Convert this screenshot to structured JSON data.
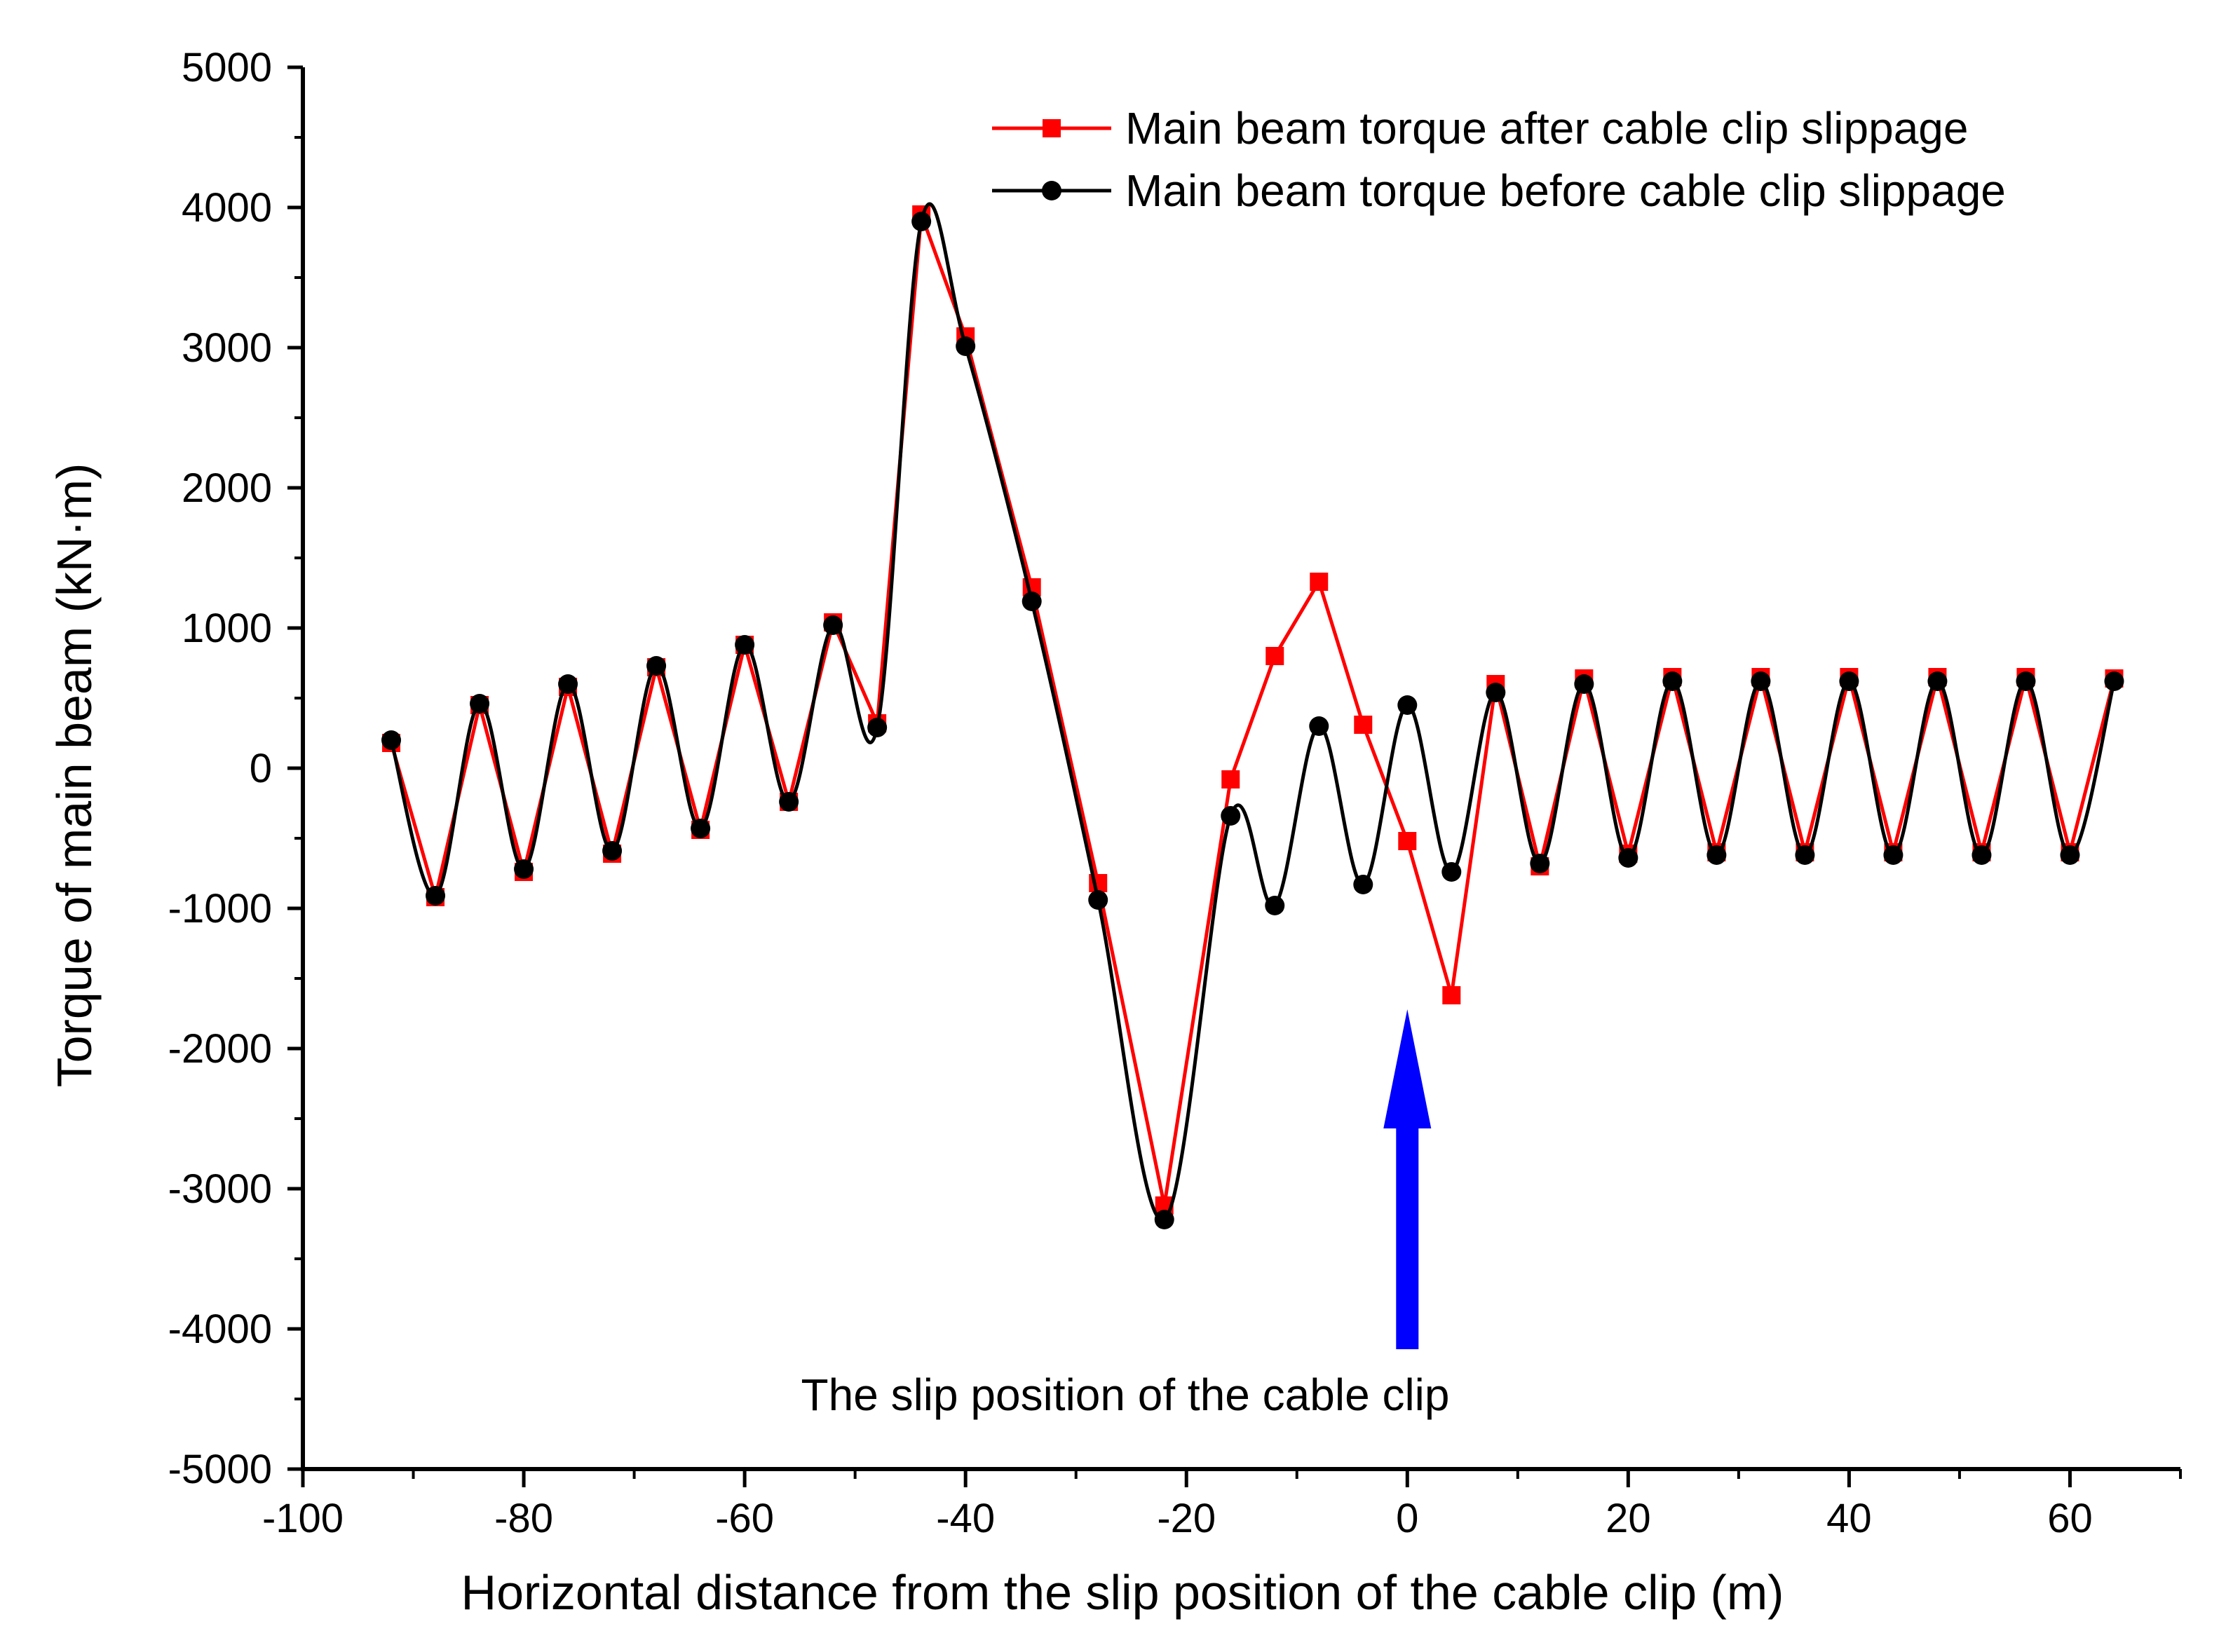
{
  "chart_data": {
    "type": "line",
    "title": "",
    "xlabel": "Horizontal distance from the slip position of the cable clip (m)",
    "ylabel": "Torque of main beam (kN·m)",
    "xlim": [
      -100,
      70
    ],
    "ylim": [
      -5000,
      5000
    ],
    "x_ticks": [
      -100,
      -80,
      -60,
      -40,
      -20,
      0,
      20,
      40,
      60
    ],
    "x_tick_labels": [
      "-100",
      "-80",
      "-60",
      "-40",
      "-20",
      "0",
      "20",
      "40",
      "60"
    ],
    "y_ticks": [
      5000,
      4000,
      3000,
      2000,
      1000,
      0,
      -1000,
      -2000,
      -3000,
      -4000,
      -5000
    ],
    "y_tick_labels": [
      "5000",
      "4000",
      "3000",
      "2000",
      "1000",
      "0",
      "-1000",
      "-2000",
      "-3000",
      "-4000",
      "-5000"
    ],
    "legend_position": "top-right",
    "series": [
      {
        "name": "Main beam torque after cable clip slippage",
        "color": "#ff0000",
        "marker": "square",
        "x": [
          -92,
          -88,
          -84,
          -80,
          -76,
          -72,
          -68,
          -64,
          -60,
          -56,
          -52,
          -48,
          -44,
          -40,
          -34,
          -28,
          -22,
          -16,
          -12,
          -8,
          -4,
          0,
          4,
          8,
          12,
          16,
          20,
          24,
          28,
          32,
          36,
          40,
          44,
          48,
          52,
          56,
          60,
          64
        ],
        "y": [
          180,
          -920,
          450,
          -740,
          580,
          -610,
          720,
          -440,
          880,
          -240,
          1040,
          320,
          3950,
          3080,
          1290,
          -820,
          -3120,
          -80,
          800,
          1330,
          310,
          -520,
          -1620,
          600,
          -700,
          640,
          -610,
          650,
          -600,
          650,
          -600,
          650,
          -600,
          650,
          -600,
          650,
          -600,
          640
        ]
      },
      {
        "name": "Main beam torque before cable clip slippage",
        "color": "#000000",
        "marker": "circle",
        "x": [
          -92,
          -88,
          -84,
          -80,
          -76,
          -72,
          -68,
          -64,
          -60,
          -56,
          -52,
          -48,
          -44,
          -40,
          -34,
          -28,
          -22,
          -16,
          -12,
          -8,
          -4,
          0,
          4,
          8,
          12,
          16,
          20,
          24,
          28,
          32,
          36,
          40,
          44,
          48,
          52,
          56,
          60,
          64
        ],
        "y": [
          200,
          -910,
          460,
          -720,
          600,
          -590,
          730,
          -430,
          880,
          -240,
          1020,
          290,
          3900,
          3010,
          1190,
          -940,
          -3220,
          -340,
          -980,
          300,
          -830,
          450,
          -740,
          540,
          -680,
          600,
          -640,
          620,
          -620,
          620,
          -620,
          620,
          -620,
          620,
          -620,
          620,
          -620,
          620
        ]
      }
    ],
    "annotation": {
      "text": "The slip position of the cable clip",
      "arrow_x": 0,
      "arrow_color": "#0000ff"
    }
  }
}
